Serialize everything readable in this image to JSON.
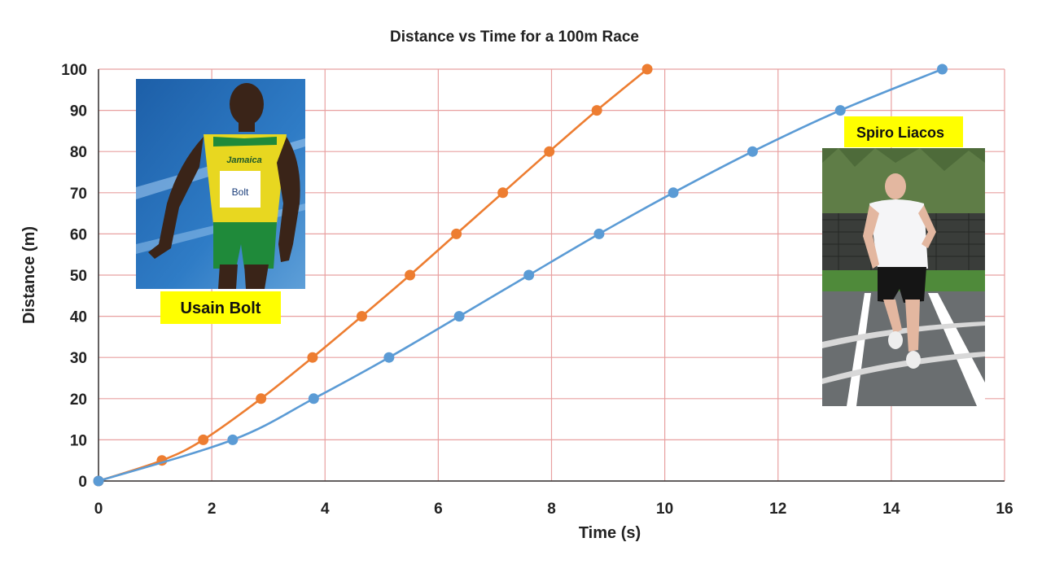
{
  "chart_data": {
    "type": "line",
    "title": "Distance vs Time for a 100m Race",
    "xlabel": "Time (s)",
    "ylabel": "Distance (m)",
    "xlim": [
      0,
      16
    ],
    "ylim": [
      0,
      100
    ],
    "x_ticks": [
      0,
      2,
      4,
      6,
      8,
      10,
      12,
      14,
      16
    ],
    "y_ticks": [
      0,
      10,
      20,
      30,
      40,
      50,
      60,
      70,
      80,
      90,
      100
    ],
    "grid": true,
    "series": [
      {
        "name": "Usain Bolt",
        "color": "#ED7D31",
        "points": [
          [
            0,
            0
          ],
          [
            1.12,
            5
          ],
          [
            1.85,
            10
          ],
          [
            2.87,
            20
          ],
          [
            3.78,
            30
          ],
          [
            4.65,
            40
          ],
          [
            5.5,
            50
          ],
          [
            6.32,
            60
          ],
          [
            7.14,
            70
          ],
          [
            7.96,
            80
          ],
          [
            8.8,
            90
          ],
          [
            9.69,
            100
          ]
        ]
      },
      {
        "name": "Spiro Liacos",
        "color": "#5B9BD5",
        "points": [
          [
            0,
            0
          ],
          [
            2.37,
            10
          ],
          [
            3.8,
            20
          ],
          [
            5.13,
            30
          ],
          [
            6.37,
            40
          ],
          [
            7.6,
            50
          ],
          [
            8.84,
            60
          ],
          [
            10.15,
            70
          ],
          [
            11.55,
            80
          ],
          [
            13.1,
            90
          ],
          [
            14.9,
            100
          ]
        ]
      }
    ],
    "colors": {
      "grid": "#E8A0A0",
      "axis": "#333333",
      "label_bg": "#FFFF00"
    }
  },
  "photos": {
    "bolt": {
      "label": "Usain Bolt",
      "icon": "sprinter-photo",
      "bib_text": "Bolt",
      "shirt_text": "Jamaica"
    },
    "liacos": {
      "label": "Spiro Liacos",
      "icon": "runner-photo"
    }
  }
}
